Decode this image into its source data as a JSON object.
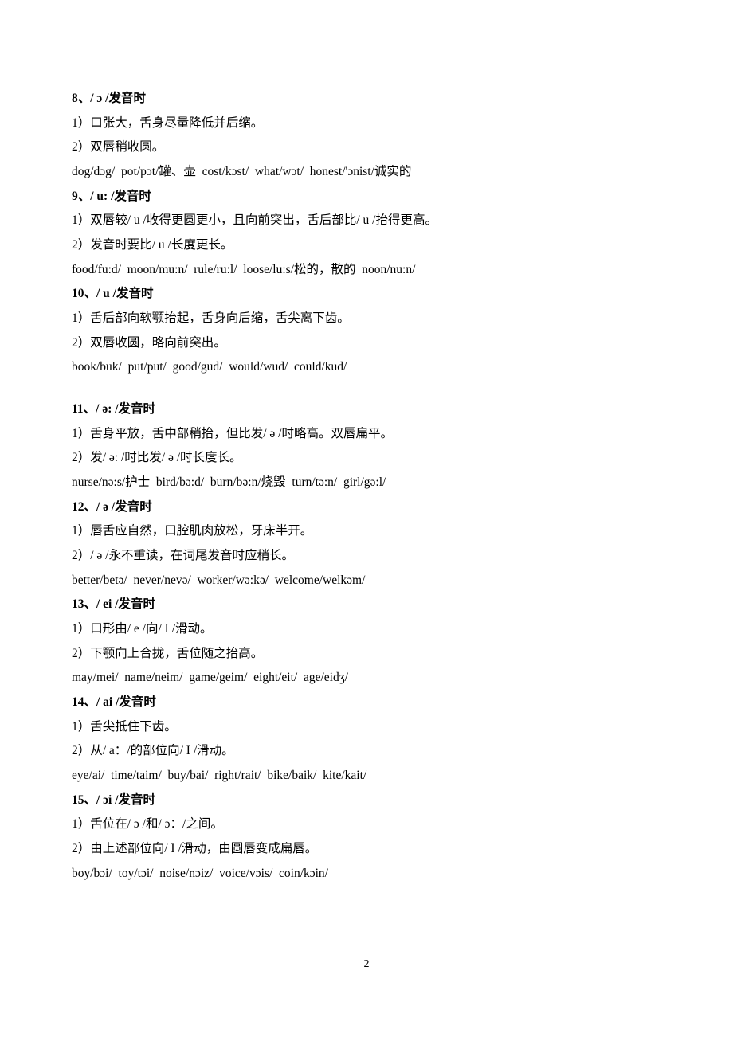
{
  "page": {
    "number": "2"
  },
  "sections": [
    {
      "head": "8、/ ɔ /发音时",
      "pts": [
        "1）口张大，舌身尽量降低并后缩。",
        "2）双唇稍收圆。"
      ],
      "ex": "dog/dɔg/   pot/pɔt/罐、壶   cost/kɔst/   what/wɔt/   honest/'ɔnist/诚实的"
    },
    {
      "head": "9、/ u: /发音时",
      "pts": [
        "1）双唇较/ u /收得更圆更小，且向前突出，舌后部比/ u /抬得更高。",
        "2）发音时要比/ u /长度更长。"
      ],
      "ex": "food/fu:d/   moon/mu:n/   rule/ru:l/   loose/lu:s/松的，散的   noon/nu:n/"
    },
    {
      "head": "10、/ u /发音时",
      "pts": [
        "1）舌后部向软颚抬起，舌身向后缩，舌尖离下齿。",
        "2）双唇收圆，略向前突出。"
      ],
      "ex": "book/buk/   put/put/   good/gud/   would/wud/   could/kud/",
      "gap_after": true
    },
    {
      "head": "11、/ ə: /发音时",
      "pts": [
        "1）舌身平放，舌中部稍抬，但比发/ ə /时略高。双唇扁平。",
        "2）发/ ə: /时比发/ ə /时长度长。"
      ],
      "ex": "nurse/nə:s/护士   bird/bə:d/   burn/bə:n/烧毁   turn/tə:n/   girl/gə:l/"
    },
    {
      "head": "12、/ ə /发音时",
      "pts": [
        "1）唇舌应自然，口腔肌肉放松，牙床半开。",
        "2）/ ə /永不重读，在词尾发音时应稍长。"
      ],
      "ex": "better/betə/   never/nevə/   worker/wə:kə/   welcome/welkəm/"
    },
    {
      "head": "13、/ ei /发音时",
      "pts": [
        "1）口形由/ e /向/ I /滑动。",
        "2）下颚向上合拢，舌位随之抬高。"
      ],
      "ex": "may/mei/   name/neim/   game/geim/   eight/eit/   age/eidʒ/"
    },
    {
      "head": "14、/ ai /发音时",
      "pts": [
        "1）舌尖抵住下齿。",
        "2）从/ a：/的部位向/ I /滑动。"
      ],
      "ex": "eye/ai/   time/taim/   buy/bai/   right/rait/   bike/baik/   kite/kait/"
    },
    {
      "head": "15、/ ɔi /发音时",
      "pts": [
        "1）舌位在/ ɔ /和/ ɔ：/之间。",
        "2）由上述部位向/ I /滑动，由圆唇变成扁唇。"
      ],
      "ex": "boy/bɔi/   toy/tɔi/   noise/nɔiz/   voice/vɔis/   coin/kɔin/"
    }
  ]
}
